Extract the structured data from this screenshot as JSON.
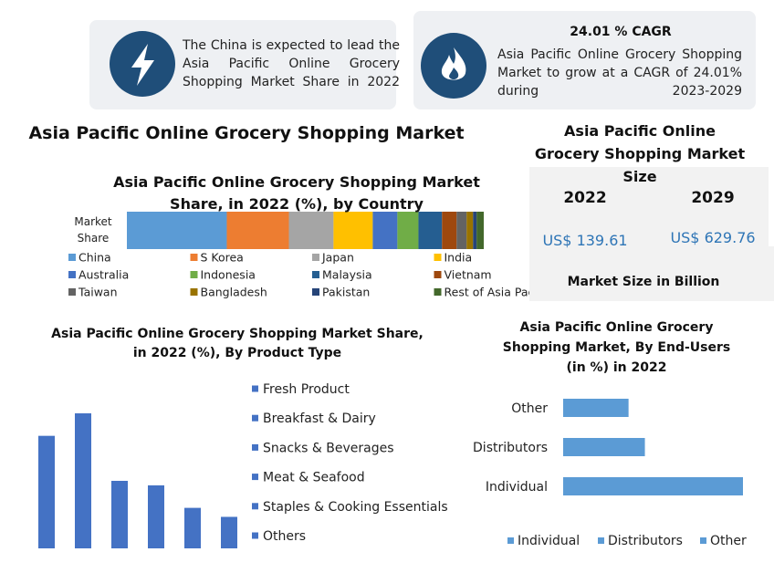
{
  "callouts": [
    {
      "text": "The China is expected to lead the Asia Pacific Online Grocery Shopping Market Share in 2022"
    },
    {
      "heading": "24.01 % CAGR",
      "text": "Asia Pacific Online Grocery Shopping Market to grow at a CAGR of 24.01% during 2023-2029"
    }
  ],
  "title": "Asia Pacific Online Grocery Shopping Market",
  "market_size": {
    "title": "Asia Pacific Online Grocery Shopping Market Size",
    "years": [
      "2022",
      "2029"
    ],
    "values": [
      "US$ 139.61",
      "US$ 629.76"
    ],
    "note": "Market Size in Billion"
  },
  "chart_data": [
    {
      "type": "stacked_bar",
      "orientation": "horizontal",
      "title": "Asia Pacific Online Grocery Shopping Market Share, in 2022 (%), by Country",
      "categories": [
        "Market Share"
      ],
      "xlim": [
        0,
        100
      ],
      "series": [
        {
          "name": "China",
          "color": "#5b9bd5",
          "values": [
            28
          ]
        },
        {
          "name": "S Korea",
          "color": "#ed7d31",
          "values": [
            17.4
          ]
        },
        {
          "name": "Japan",
          "color": "#a5a5a5",
          "values": [
            12.5
          ]
        },
        {
          "name": "India",
          "color": "#ffc000",
          "values": [
            11
          ]
        },
        {
          "name": "Australia",
          "color": "#4472c4",
          "values": [
            6.9
          ]
        },
        {
          "name": "Indonesia",
          "color": "#70ad47",
          "values": [
            5.9
          ]
        },
        {
          "name": "Malaysia",
          "color": "#255e91",
          "values": [
            6.6
          ]
        },
        {
          "name": "Vietnam",
          "color": "#9e480e",
          "values": [
            4.1
          ]
        },
        {
          "name": "Taiwan",
          "color": "#636363",
          "values": [
            2.8
          ]
        },
        {
          "name": "Bangladesh",
          "color": "#997300",
          "values": [
            1.8
          ]
        },
        {
          "name": "Pakistan",
          "color": "#264478",
          "values": [
            1
          ]
        },
        {
          "name": "Rest of Asia Pacific",
          "color": "#43682b",
          "values": [
            2
          ]
        }
      ]
    },
    {
      "type": "bar",
      "title": "Asia Pacific Online Grocery Shopping Market Share, in 2022 (%), By Product Type",
      "categories": [
        "Fresh Product",
        "Breakfast & Dairy",
        "Snacks & Beverages",
        "Meat & Seafood",
        "Staples & Cooking Essentials",
        "Others"
      ],
      "values": [
        25,
        30,
        15,
        14,
        9,
        7
      ],
      "color": "#4472c4",
      "ylim": [
        0,
        30
      ]
    },
    {
      "type": "hbar",
      "title": "Asia Pacific Online Grocery Shopping Market, By End-Users (in %) in 2022",
      "categories": [
        "Individual",
        "Distributors",
        "Other"
      ],
      "values": [
        55,
        25,
        20
      ],
      "color": "#5b9bd5",
      "xlim": [
        0,
        55
      ]
    }
  ]
}
